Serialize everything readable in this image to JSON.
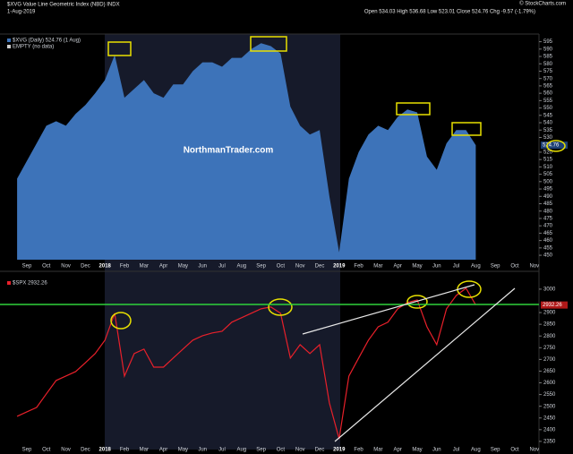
{
  "header": {
    "title": "$XVG Value Line Geometric Index (NBD) INDX",
    "date": "1-Aug-2019",
    "quote": "Open 534.03  High 536.68  Low 523.01  Close 524.76  Chg -9.57 (-1.79%)",
    "credit": "© StockCharts.com"
  },
  "chart_data": [
    {
      "type": "area",
      "watermark": "NorthmanTrader.com",
      "empty_legend": "EMPTY (no data)",
      "current_label": "524.76",
      "categories": [
        null,
        "Sep",
        null,
        "Oct",
        null,
        "Nov",
        null,
        "Dec",
        null,
        "2018",
        null,
        "Feb",
        null,
        "Mar",
        null,
        "Apr",
        null,
        "May",
        null,
        "Jun",
        null,
        "Jul",
        null,
        "Aug",
        null,
        "Sep",
        null,
        "Oct",
        null,
        "Nov",
        null,
        "Dec",
        null,
        "2019",
        null,
        "Feb",
        null,
        "Mar",
        null,
        "Apr",
        null,
        "May",
        null,
        "Jun",
        null,
        "Jul",
        null,
        "Aug",
        null,
        "Sep",
        null,
        "Oct",
        null,
        "Nov"
      ],
      "series": [
        {
          "name": "$XVG (Daily) 524.76 (1 Aug)",
          "color": "#3d73b9",
          "values": [
            502,
            514,
            526,
            538,
            541,
            538,
            546,
            552,
            560,
            569,
            586,
            557,
            563,
            569,
            560,
            557,
            566,
            566,
            575,
            581,
            581,
            578,
            584,
            584,
            590,
            594,
            592,
            587,
            551,
            538,
            532,
            535,
            490,
            452,
            502,
            520,
            532,
            538,
            535,
            544,
            549,
            547,
            517,
            508,
            526,
            535,
            535,
            524.76,
            null,
            null,
            null,
            null,
            null,
            null
          ]
        }
      ],
      "ylim": [
        447,
        599
      ],
      "yticks": [
        450,
        455,
        460,
        465,
        470,
        475,
        480,
        485,
        490,
        495,
        500,
        505,
        510,
        515,
        520,
        530,
        535,
        540,
        545,
        550,
        555,
        560,
        565,
        570,
        575,
        580,
        585,
        590,
        595
      ],
      "grid": false
    },
    {
      "type": "line",
      "current_label": "2932.26",
      "categories": [
        null,
        "Sep",
        null,
        "Oct",
        null,
        "Nov",
        null,
        "Dec",
        null,
        "2018",
        null,
        "Feb",
        null,
        "Mar",
        null,
        "Apr",
        null,
        "May",
        null,
        "Jun",
        null,
        "Jul",
        null,
        "Aug",
        null,
        "Sep",
        null,
        "Oct",
        null,
        "Nov",
        null,
        "Dec",
        null,
        "2019",
        null,
        "Feb",
        null,
        "Mar",
        null,
        "Apr",
        null,
        "May",
        null,
        "Jun",
        null,
        "Jul",
        null,
        "Aug",
        null,
        "Sep",
        null,
        "Oct",
        null,
        "Nov"
      ],
      "series": [
        {
          "name": "$SPX 2932.26",
          "color": "#e8202a",
          "values": [
            2457,
            2476,
            2495,
            2553,
            2610,
            2629,
            2648,
            2686,
            2725,
            2782,
            2897,
            2629,
            2725,
            2744,
            2667,
            2667,
            2706,
            2744,
            2782,
            2801,
            2813,
            2820,
            2859,
            2878,
            2897,
            2916,
            2924,
            2897,
            2706,
            2763,
            2725,
            2763,
            2514,
            2361,
            2629,
            2706,
            2782,
            2839,
            2859,
            2916,
            2943,
            2954,
            2839,
            2763,
            2916,
            2973,
            3004,
            2932.26,
            null,
            null,
            null,
            null,
            null,
            null
          ]
        }
      ],
      "ylim": [
        2342,
        3057
      ],
      "yticks": [
        2350,
        2400,
        2450,
        2500,
        2550,
        2600,
        2650,
        2700,
        2750,
        2800,
        2850,
        2900,
        3000
      ],
      "grid": false
    }
  ]
}
